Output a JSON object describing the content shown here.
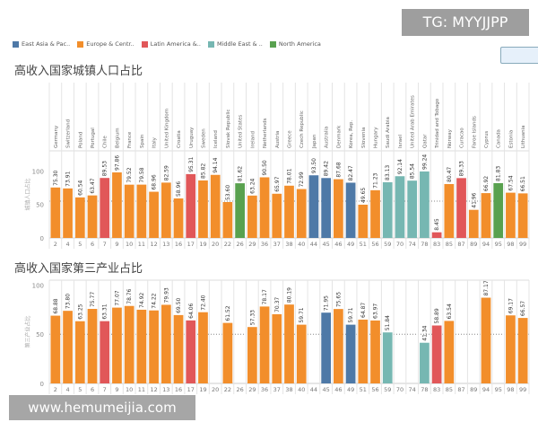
{
  "watermark_top": "TG: MYYJJPP",
  "watermark_bottom": "www.hemumeijia.com",
  "legend": [
    {
      "name": "East Asia & Pac..",
      "color": "#4e79a7"
    },
    {
      "name": "Europe & Centr..",
      "color": "#f28e2b"
    },
    {
      "name": "Latin America &..",
      "color": "#e15759"
    },
    {
      "name": "Middle East & ..",
      "color": "#76b7b2"
    },
    {
      "name": "North America",
      "color": "#59a14f"
    }
  ],
  "chart_data": [
    {
      "type": "bar",
      "title": "高收入国家城镇人口占比",
      "ylabel": "城镇人口占比",
      "ylim": [
        0,
        130
      ],
      "yticks": [
        0,
        50,
        100
      ],
      "reference_line": 55,
      "ids": [
        2,
        4,
        5,
        6,
        7,
        9,
        10,
        11,
        12,
        13,
        16,
        17,
        19,
        20,
        22,
        26,
        29,
        36,
        37,
        38,
        40,
        44,
        45,
        46,
        49,
        51,
        56,
        59,
        70,
        74,
        78,
        83,
        85,
        87,
        89,
        94,
        95,
        98,
        99
      ],
      "countries": [
        "Germany",
        "Switzerland",
        "Poland",
        "Portugal",
        "Chile",
        "Belgium",
        "France",
        "Spain",
        "Italy",
        "United Kingdom",
        "Croatia",
        "Uruguay",
        "Sweden",
        "Iceland",
        "Slovak Republic",
        "United States",
        "Ireland",
        "Netherlands",
        "Austria",
        "Greece",
        "Czech Republic",
        "Japan",
        "Australia",
        "Denmark",
        "Korea, Rep.",
        "Slovenia",
        "Hungary",
        "Saudi Arabia",
        "Israel",
        "United Arab Emirates",
        "Qatar",
        "Trinidad and Tobago",
        "Norway",
        "Curacao",
        "Faroe Islands",
        "Cyprus",
        "Canada",
        "Estonia",
        "Lithuania"
      ],
      "regions": [
        1,
        1,
        1,
        1,
        2,
        1,
        1,
        1,
        1,
        1,
        1,
        2,
        1,
        1,
        1,
        4,
        1,
        1,
        1,
        1,
        1,
        0,
        0,
        1,
        0,
        1,
        1,
        3,
        3,
        3,
        3,
        2,
        1,
        2,
        1,
        1,
        4,
        1,
        1
      ],
      "values": [
        75.3,
        73.91,
        60.54,
        63.47,
        89.53,
        97.86,
        79.52,
        79.58,
        68.96,
        82.59,
        58.96,
        95.31,
        85.82,
        94.14,
        53.6,
        81.62,
        63.24,
        90.5,
        65.97,
        78.01,
        72.99,
        93.5,
        89.42,
        87.68,
        82.47,
        49.65,
        71.23,
        83.13,
        92.14,
        85.54,
        99.24,
        8.45,
        80.47,
        89.33,
        41.96,
        66.92,
        81.83,
        67.54,
        66.51
      ]
    },
    {
      "type": "bar",
      "title": "高收入国家第三产业占比",
      "ylabel": "第三产业占比",
      "ylim": [
        0,
        105
      ],
      "yticks": [
        0,
        50,
        100
      ],
      "reference_line": 50,
      "ids": [
        2,
        4,
        5,
        6,
        7,
        9,
        10,
        11,
        12,
        13,
        16,
        17,
        19,
        20,
        22,
        26,
        29,
        36,
        37,
        38,
        40,
        44,
        45,
        46,
        49,
        51,
        56,
        59,
        70,
        74,
        78,
        83,
        85,
        87,
        89,
        94,
        95,
        98,
        99
      ],
      "regions": [
        1,
        1,
        1,
        1,
        2,
        1,
        1,
        1,
        1,
        1,
        1,
        2,
        1,
        1,
        1,
        4,
        1,
        1,
        1,
        1,
        1,
        0,
        0,
        1,
        0,
        1,
        1,
        3,
        3,
        3,
        3,
        2,
        1,
        2,
        1,
        1,
        4,
        1,
        1
      ],
      "values": [
        68.88,
        73.8,
        63.25,
        75.77,
        63.31,
        77.07,
        78.76,
        74.92,
        74.22,
        79.93,
        69.5,
        64.06,
        72.4,
        null,
        61.52,
        null,
        57.33,
        78.17,
        70.37,
        80.19,
        59.71,
        null,
        71.95,
        75.65,
        59.71,
        64.87,
        63.97,
        51.84,
        null,
        null,
        41.34,
        58.89,
        63.54,
        null,
        null,
        87.17,
        null,
        69.17,
        66.57
      ]
    }
  ]
}
